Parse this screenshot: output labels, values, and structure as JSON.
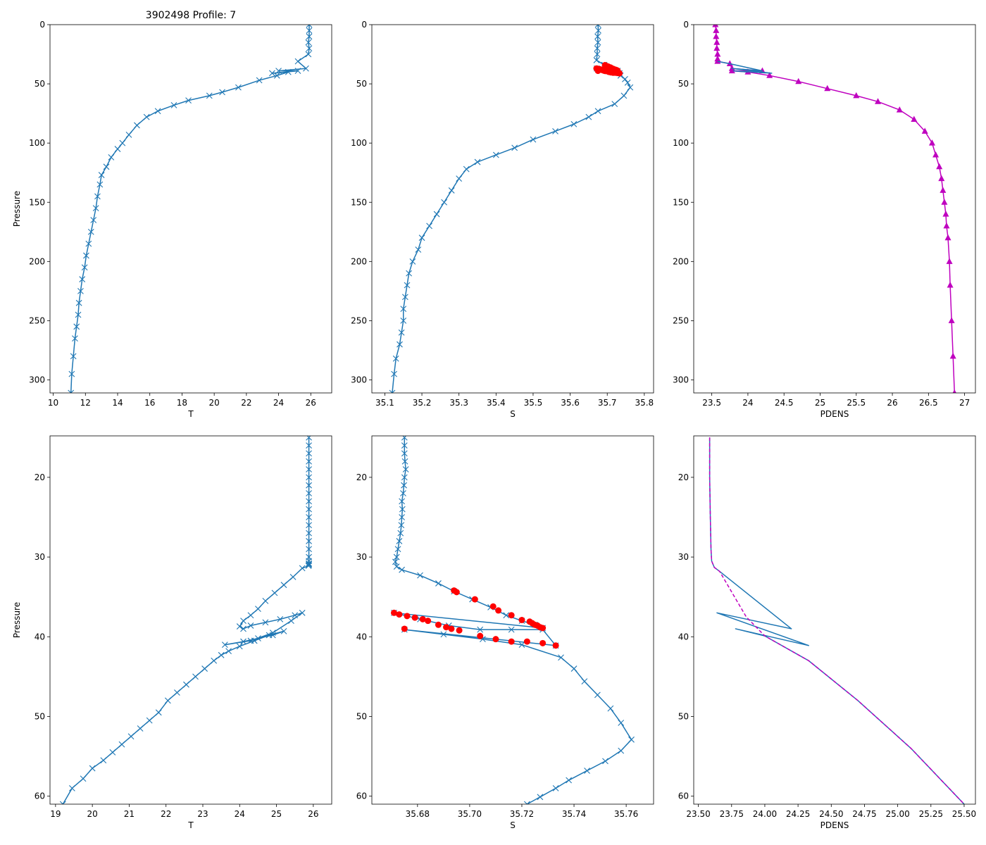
{
  "figure_title": "3902498 Profile: 7",
  "colors": {
    "series": "#1f77b4",
    "flag": "#ff0000",
    "density": "#bf00bf",
    "axis": "#000000"
  },
  "chart_data": [
    {
      "id": "top-temperature",
      "type": "line",
      "title": "3902498 Profile: 7",
      "xlabel": "T",
      "ylabel": "Pressure",
      "xlim": [
        9.8,
        27.3
      ],
      "ylim": [
        311,
        0
      ],
      "xticks": [
        10,
        12,
        14,
        16,
        18,
        20,
        22,
        24,
        26
      ],
      "yticks": [
        0,
        50,
        100,
        150,
        200,
        250,
        300
      ],
      "series": [
        {
          "name": "T",
          "marker": "x",
          "color": "#1f77b4",
          "x": [
            25.9,
            25.9,
            25.9,
            25.85,
            25.9,
            25.85,
            25.2,
            25.7,
            24.0,
            25.2,
            23.6,
            24.6,
            23.9,
            22.8,
            21.5,
            20.5,
            19.7,
            18.4,
            17.5,
            16.5,
            15.8,
            15.2,
            14.7,
            14.3,
            14.0,
            13.6,
            13.3,
            13.0,
            12.9,
            12.75,
            12.65,
            12.5,
            12.35,
            12.2,
            12.05,
            11.95,
            11.8,
            11.7,
            11.6,
            11.55,
            11.45,
            11.35,
            11.25,
            11.15,
            11.1
          ],
          "y": [
            0,
            5,
            10,
            15,
            20,
            25,
            31,
            37,
            39,
            39,
            41,
            40,
            43,
            47,
            53,
            57,
            60,
            64,
            68,
            73,
            78,
            85,
            93,
            100,
            105,
            112,
            120,
            127,
            135,
            145,
            155,
            165,
            175,
            185,
            195,
            205,
            215,
            225,
            235,
            245,
            255,
            265,
            280,
            295,
            311
          ]
        }
      ]
    },
    {
      "id": "top-salinity",
      "type": "line",
      "xlabel": "S",
      "xlim": [
        35.065,
        35.825
      ],
      "ylim": [
        311,
        0
      ],
      "xticks": [
        35.1,
        35.2,
        35.3,
        35.4,
        35.5,
        35.6,
        35.7,
        35.8
      ],
      "yticks": [
        0,
        50,
        100,
        150,
        200,
        250,
        300
      ],
      "series": [
        {
          "name": "S",
          "marker": "x",
          "color": "#1f77b4",
          "x": [
            35.675,
            35.676,
            35.674,
            35.675,
            35.673,
            35.673,
            35.671,
            35.692,
            35.728,
            35.672,
            35.733,
            35.736,
            35.748,
            35.755,
            35.762,
            35.745,
            35.72,
            35.675,
            35.65,
            35.61,
            35.56,
            35.5,
            35.45,
            35.4,
            35.35,
            35.32,
            35.3,
            35.28,
            35.26,
            35.24,
            35.22,
            35.2,
            35.19,
            35.175,
            35.165,
            35.16,
            35.155,
            35.15,
            35.15,
            35.145,
            35.14,
            35.13,
            35.125,
            35.12
          ],
          "y": [
            0,
            5,
            10,
            15,
            20,
            25,
            30,
            34,
            39,
            37,
            41,
            43,
            46,
            49,
            53,
            60,
            67,
            73,
            78,
            84,
            90,
            97,
            104,
            110,
            116,
            122,
            130,
            140,
            150,
            160,
            170,
            180,
            190,
            200,
            210,
            220,
            230,
            240,
            250,
            260,
            270,
            282,
            295,
            311
          ]
        },
        {
          "name": "flagged S",
          "marker": "o",
          "color": "#ff0000",
          "x": [
            35.694,
            35.695,
            35.702,
            35.709,
            35.711,
            35.716,
            35.72,
            35.723,
            35.724,
            35.725,
            35.726,
            35.727,
            35.728,
            35.671,
            35.673,
            35.676,
            35.679,
            35.682,
            35.684,
            35.688,
            35.691,
            35.693,
            35.696,
            35.675,
            35.704,
            35.71,
            35.716,
            35.722,
            35.728,
            35.733
          ],
          "y": [
            34.2,
            34.4,
            35.3,
            36.2,
            36.7,
            37.3,
            37.9,
            38.1,
            38.3,
            38.5,
            38.6,
            38.8,
            38.9,
            37.0,
            37.2,
            37.4,
            37.6,
            37.8,
            38.0,
            38.5,
            38.8,
            39.0,
            39.2,
            39.0,
            39.9,
            40.3,
            40.6,
            40.6,
            40.8,
            41.1
          ]
        }
      ]
    },
    {
      "id": "top-density",
      "type": "line",
      "xlabel": "PDENS",
      "xlim": [
        23.25,
        27.15
      ],
      "ylim": [
        311,
        0
      ],
      "xticks": [
        23.5,
        24.0,
        24.5,
        25.0,
        25.5,
        26.0,
        26.5,
        27.0
      ],
      "yticks": [
        0,
        50,
        100,
        150,
        200,
        250,
        300
      ],
      "series": [
        {
          "name": "PDENS",
          "marker": "^",
          "color": "#bf00bf",
          "x": [
            23.55,
            23.56,
            23.56,
            23.57,
            23.57,
            23.58,
            23.58,
            23.58,
            23.75,
            23.78,
            24.2,
            23.78,
            24.0,
            24.3,
            24.7,
            25.1,
            25.5,
            25.8,
            26.1,
            26.3,
            26.45,
            26.55,
            26.6,
            26.65,
            26.68,
            26.7,
            26.72,
            26.74,
            26.75,
            26.77,
            26.79,
            26.8,
            26.82,
            26.84,
            26.86
          ],
          "y": [
            0,
            5,
            10,
            15,
            20,
            25,
            29,
            31,
            33,
            37,
            39,
            39,
            40,
            43,
            48,
            54,
            60,
            65,
            72,
            80,
            90,
            100,
            110,
            120,
            130,
            140,
            150,
            160,
            170,
            180,
            200,
            220,
            250,
            280,
            311
          ]
        },
        {
          "name": "PDENS line",
          "marker": "none",
          "color": "#1f77b4",
          "x": [
            23.58,
            23.75,
            24.2,
            23.78,
            24.33,
            23.8,
            24.0
          ],
          "y": [
            31,
            33,
            39,
            37,
            41,
            39,
            40
          ]
        }
      ]
    },
    {
      "id": "bottom-temperature",
      "type": "line",
      "xlabel": "T",
      "ylabel": "Pressure",
      "xlim": [
        18.85,
        26.5
      ],
      "ylim": [
        61,
        14.8
      ],
      "xticks": [
        19,
        20,
        21,
        22,
        23,
        24,
        25,
        26
      ],
      "yticks": [
        20,
        30,
        40,
        50,
        60
      ],
      "series": [
        {
          "name": "T",
          "marker": "x",
          "color": "#1f77b4",
          "x": [
            25.88,
            25.88,
            25.88,
            25.88,
            25.88,
            25.88,
            25.88,
            25.88,
            25.88,
            25.88,
            25.88,
            25.88,
            25.88,
            25.88,
            25.88,
            25.88,
            25.88,
            25.88,
            25.88,
            25.88,
            25.87,
            25.7,
            25.45,
            25.2,
            24.95,
            24.7,
            24.5,
            24.3,
            24.1,
            24.0,
            24.1,
            24.3,
            24.7,
            25.1,
            25.5,
            25.7,
            25.4,
            24.9,
            24.3,
            23.6,
            24.1,
            24.5,
            24.9,
            25.2,
            24.8,
            24.4,
            24.0,
            23.7,
            23.5,
            23.3,
            23.05,
            22.8,
            22.55,
            22.3,
            22.05,
            21.8,
            21.55,
            21.3,
            21.05,
            20.8,
            20.55,
            20.3,
            20.0,
            19.75,
            19.45,
            19.2
          ],
          "y": [
            15,
            16,
            17,
            18,
            19,
            20,
            21,
            22,
            23,
            24,
            25,
            26,
            27,
            28,
            29,
            30,
            30.5,
            30.8,
            30.9,
            31.0,
            31.1,
            31.4,
            32.5,
            33.5,
            34.5,
            35.5,
            36.5,
            37.3,
            38.0,
            38.7,
            39.0,
            38.6,
            38.2,
            37.8,
            37.3,
            37.0,
            38.0,
            39.5,
            40.5,
            41.0,
            40.6,
            40.2,
            39.8,
            39.3,
            39.8,
            40.5,
            41.2,
            41.8,
            42.3,
            43.0,
            44.0,
            45.0,
            46.0,
            47.0,
            48.0,
            49.5,
            50.5,
            51.5,
            52.5,
            53.5,
            54.5,
            55.5,
            56.5,
            57.8,
            59.0,
            61.0
          ]
        }
      ]
    },
    {
      "id": "bottom-salinity",
      "type": "line",
      "xlabel": "S",
      "xlim": [
        35.6625,
        35.7705
      ],
      "ylim": [
        61,
        14.8
      ],
      "xticks": [
        35.68,
        35.7,
        35.72,
        35.74,
        35.76
      ],
      "xticklabels": [
        "35.68",
        "35.70",
        "35.72",
        "35.74",
        "35.76"
      ],
      "yticks": [
        20,
        30,
        40,
        50,
        60
      ],
      "series": [
        {
          "name": "S",
          "marker": "x",
          "color": "#1f77b4",
          "x": [
            35.675,
            35.675,
            35.675,
            35.6752,
            35.6755,
            35.675,
            35.6748,
            35.6745,
            35.674,
            35.6742,
            35.674,
            35.6738,
            35.6735,
            35.673,
            35.6725,
            35.672,
            35.6715,
            35.672,
            35.674,
            35.681,
            35.688,
            35.694,
            35.701,
            35.708,
            35.714,
            35.72,
            35.725,
            35.728,
            35.671,
            35.681,
            35.692,
            35.704,
            35.716,
            35.728,
            35.733,
            35.675,
            35.69,
            35.705,
            35.72,
            35.735,
            35.74,
            35.744,
            35.749,
            35.754,
            35.758,
            35.762,
            35.758,
            35.752,
            35.745,
            35.738,
            35.733,
            35.727,
            35.722,
            35.72
          ],
          "y": [
            15,
            16,
            17,
            18,
            19,
            20,
            21,
            22,
            23,
            24,
            25,
            26,
            27,
            28,
            29,
            30,
            30.6,
            31.2,
            31.6,
            32.3,
            33.3,
            34.3,
            35.3,
            36.3,
            37.3,
            38.0,
            38.5,
            38.9,
            37.0,
            37.8,
            38.6,
            39.1,
            39.1,
            39.1,
            41.1,
            39.1,
            39.7,
            40.3,
            41.0,
            42.6,
            44.0,
            45.6,
            47.3,
            49.0,
            50.8,
            52.9,
            54.3,
            55.6,
            56.8,
            58.0,
            59.0,
            60.1,
            61.0,
            61.5
          ]
        },
        {
          "name": "flagged S",
          "marker": "o",
          "color": "#ff0000",
          "x": [
            35.694,
            35.695,
            35.702,
            35.709,
            35.711,
            35.716,
            35.72,
            35.723,
            35.724,
            35.725,
            35.726,
            35.727,
            35.728,
            35.671,
            35.673,
            35.676,
            35.679,
            35.682,
            35.684,
            35.688,
            35.691,
            35.693,
            35.696,
            35.675,
            35.704,
            35.71,
            35.716,
            35.722,
            35.728,
            35.733
          ],
          "y": [
            34.2,
            34.4,
            35.3,
            36.2,
            36.7,
            37.3,
            37.9,
            38.1,
            38.3,
            38.5,
            38.6,
            38.8,
            38.9,
            37.0,
            37.2,
            37.4,
            37.6,
            37.8,
            38.0,
            38.5,
            38.8,
            39.0,
            39.2,
            39.0,
            39.9,
            40.3,
            40.6,
            40.6,
            40.8,
            41.1
          ]
        }
      ]
    },
    {
      "id": "bottom-density",
      "type": "line",
      "xlabel": "PDENS",
      "xlim": [
        23.465,
        25.585
      ],
      "ylim": [
        61,
        14.8
      ],
      "xticks": [
        23.5,
        23.75,
        24.0,
        24.25,
        24.5,
        24.75,
        25.0,
        25.25,
        25.5
      ],
      "xticklabels": [
        "23.50",
        "23.75",
        "24.00",
        "24.25",
        "24.50",
        "24.75",
        "25.00",
        "25.25",
        "25.50"
      ],
      "yticks": [
        20,
        30,
        40,
        50,
        60
      ],
      "series": [
        {
          "name": "PDENS",
          "marker": "none",
          "color": "#1f77b4",
          "x": [
            23.585,
            23.585,
            23.59,
            23.595,
            23.6,
            23.62,
            23.66,
            24.2,
            23.64,
            24.33,
            23.78,
            24.0,
            24.33,
            24.7,
            25.1,
            25.5
          ],
          "y": [
            15,
            20,
            25,
            29,
            30.5,
            31.3,
            31.8,
            39.0,
            37.0,
            41.1,
            39.0,
            39.9,
            43.0,
            48.0,
            54.0,
            61.0
          ]
        },
        {
          "name": "PDENS dashed",
          "marker": "none",
          "dashed": true,
          "color": "#bf00bf",
          "x": [
            23.585,
            23.585,
            23.59,
            23.595,
            23.6,
            23.62,
            23.66,
            23.86,
            24.0,
            24.33,
            24.7,
            25.1,
            25.5
          ],
          "y": [
            15,
            20,
            25,
            29,
            30.5,
            31.3,
            31.8,
            37.5,
            39.9,
            43.0,
            48.0,
            54.0,
            61.0
          ]
        }
      ]
    }
  ]
}
